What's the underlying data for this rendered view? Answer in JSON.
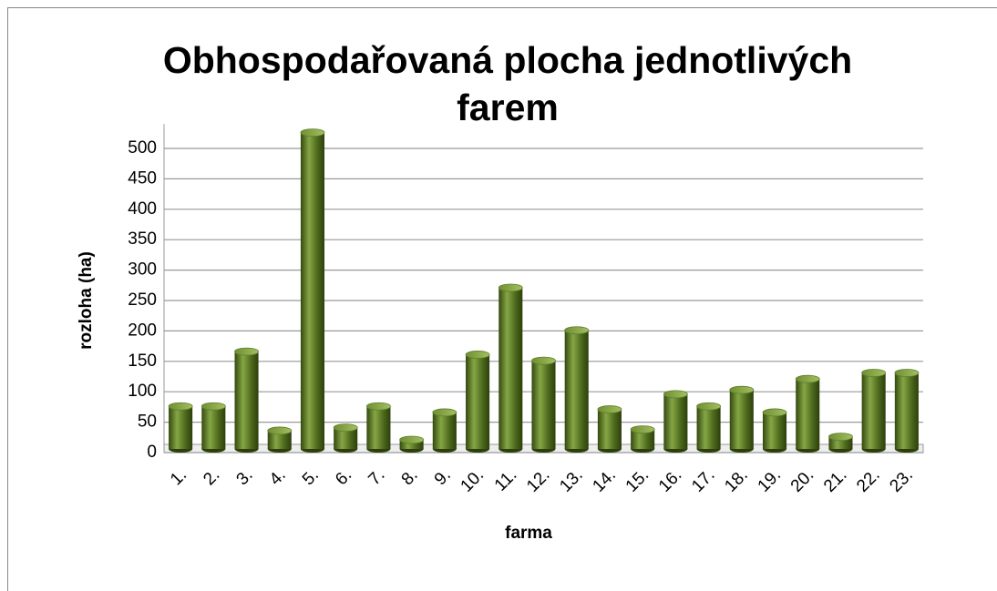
{
  "chart_data": {
    "type": "bar",
    "title": "Obhospodařovaná plocha jednotlivých farem",
    "x_label": "farma",
    "y_label": "rozloha (ha)",
    "categories": [
      "1.",
      "2.",
      "3.",
      "4.",
      "5.",
      "6.",
      "7.",
      "8.",
      "9.",
      "10.",
      "11.",
      "12.",
      "13.",
      "14.",
      "15.",
      "16.",
      "17.",
      "18.",
      "19.",
      "20.",
      "21.",
      "22.",
      "23."
    ],
    "values": [
      70,
      70,
      160,
      30,
      520,
      35,
      70,
      15,
      60,
      155,
      265,
      145,
      195,
      65,
      32,
      90,
      70,
      97,
      60,
      115,
      20,
      125,
      125
    ],
    "color": "#5f7f28",
    "ylim": [
      0,
      540
    ],
    "yticks": [
      0,
      50,
      100,
      150,
      200,
      250,
      300,
      350,
      400,
      450,
      500
    ],
    "grid": true
  }
}
